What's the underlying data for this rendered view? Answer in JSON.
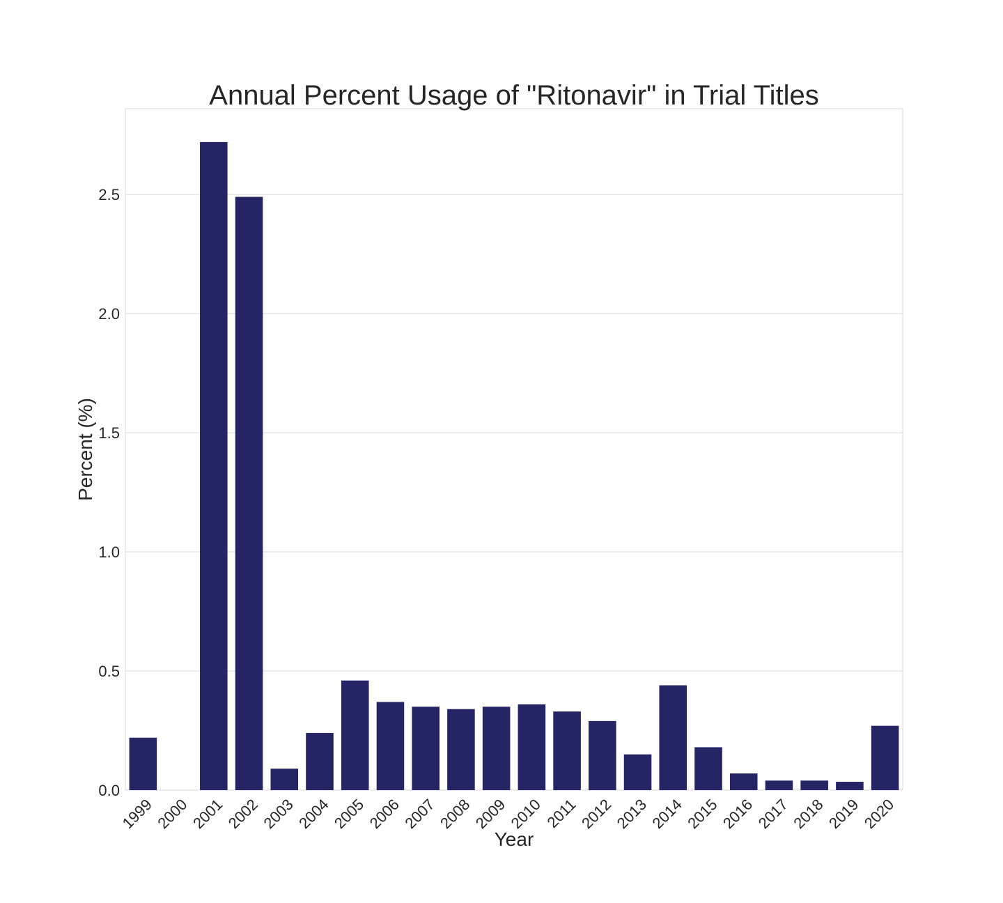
{
  "colors": {
    "bar": "#252464",
    "grid": "#d9d9d9",
    "text": "#262626",
    "background": "#ffffff"
  },
  "chart_data": {
    "type": "bar",
    "title": "Annual Percent Usage of \"Ritonavir\" in Trial Titles",
    "xlabel": "Year",
    "ylabel": "Percent (%)",
    "ylim": [
      0,
      2.86
    ],
    "yticks": [
      0.0,
      0.5,
      1.0,
      1.5,
      2.0,
      2.5
    ],
    "ytick_labels": [
      "0.0",
      "0.5",
      "1.0",
      "1.5",
      "2.0",
      "2.5"
    ],
    "grid": true,
    "categories": [
      "1999",
      "2000",
      "2001",
      "2002",
      "2003",
      "2004",
      "2005",
      "2006",
      "2007",
      "2008",
      "2009",
      "2010",
      "2011",
      "2012",
      "2013",
      "2014",
      "2015",
      "2016",
      "2017",
      "2018",
      "2019",
      "2020"
    ],
    "values": [
      0.22,
      0.0,
      2.72,
      2.49,
      0.09,
      0.24,
      0.46,
      0.37,
      0.35,
      0.34,
      0.35,
      0.36,
      0.33,
      0.29,
      0.15,
      0.44,
      0.18,
      0.07,
      0.04,
      0.04,
      0.035,
      0.27
    ]
  }
}
